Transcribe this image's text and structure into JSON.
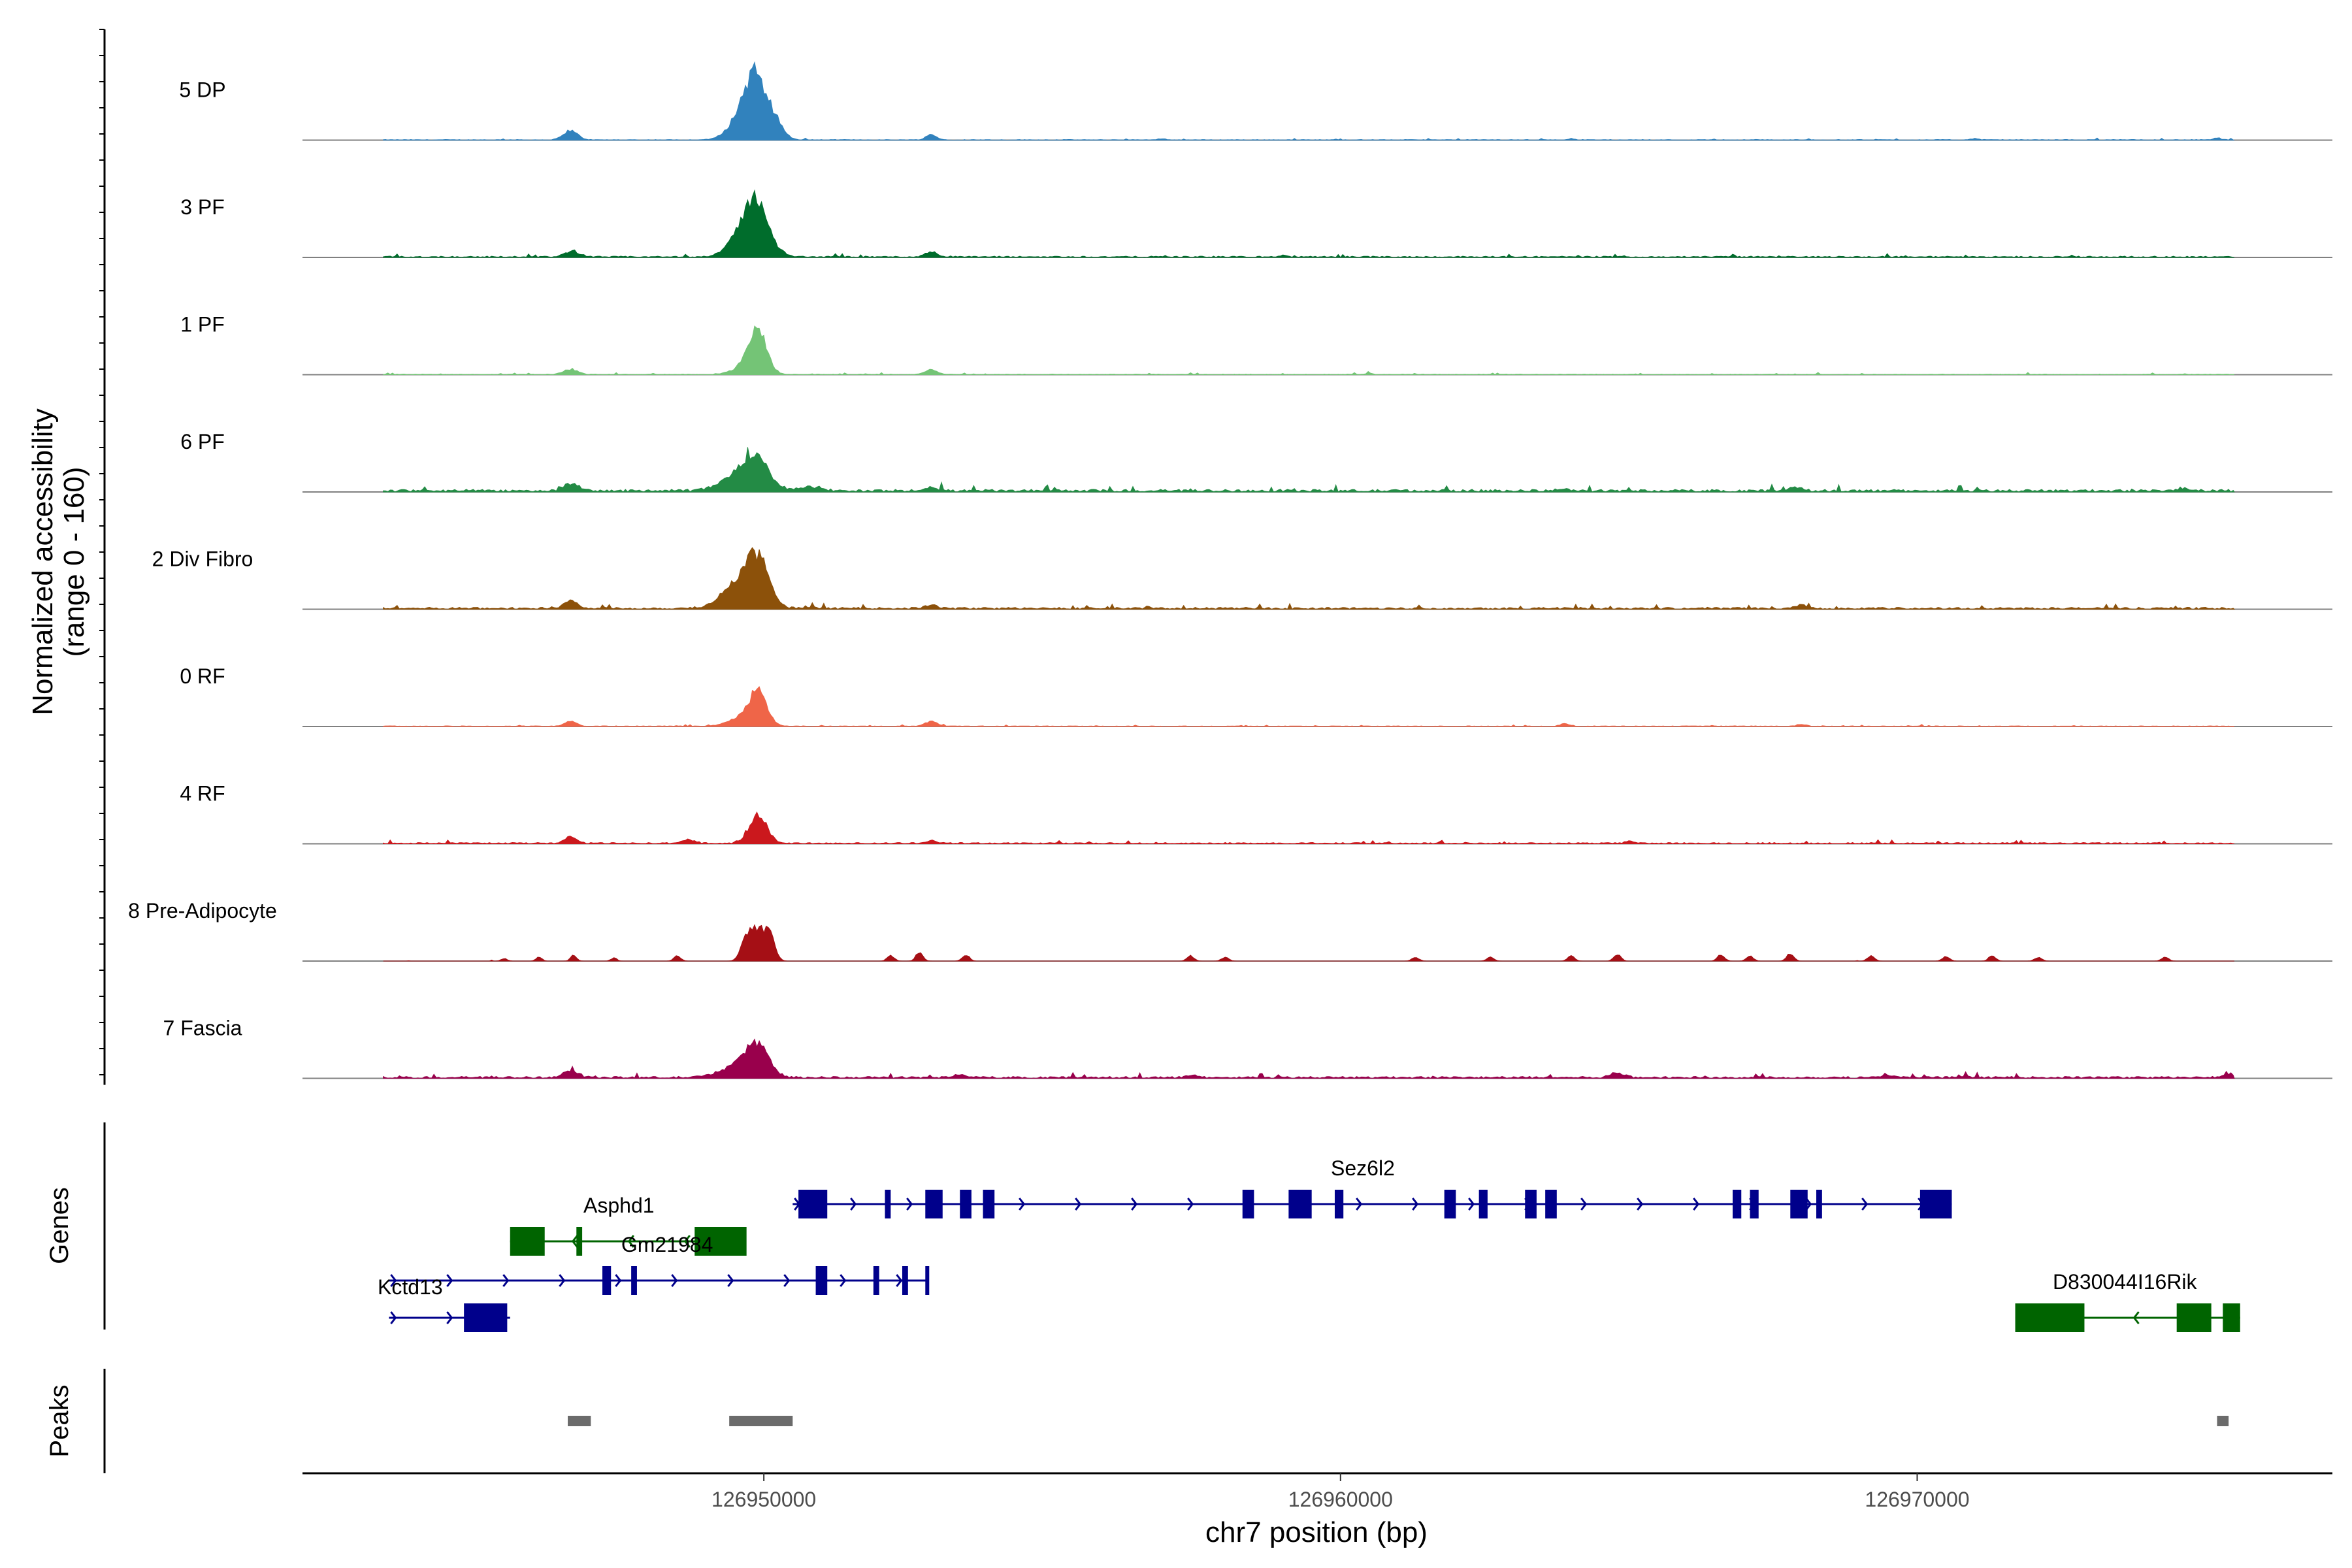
{
  "chart_data": {
    "type": "area",
    "region": "chr7",
    "xlabel": "chr7 position (bp)",
    "ylabel": [
      "Normalized accessibility",
      "(range 0 - 160)"
    ],
    "x_range": [
      126942000,
      126977200
    ],
    "y_range": [
      0,
      160
    ],
    "x_ticks": [
      126950000,
      126960000,
      126970000
    ],
    "x_tick_labels": [
      "126950000",
      "126960000",
      "126970000"
    ],
    "track_start": 126943400,
    "track_end": 126975500,
    "tracks": [
      {
        "name": "5 DP",
        "color": "#3182bd",
        "base": 1,
        "peaks": [
          [
            126946650,
            14,
            120
          ],
          [
            126949900,
            70,
            190
          ],
          [
            126949700,
            45,
            240
          ],
          [
            126950250,
            16,
            120
          ],
          [
            126952900,
            8,
            90
          ],
          [
            126956900,
            2,
            60
          ],
          [
            126964000,
            2,
            60
          ],
          [
            126971000,
            2,
            60
          ],
          [
            126975200,
            3,
            60
          ]
        ]
      },
      {
        "name": "3 PF",
        "color": "#006d2c",
        "base": 2,
        "peaks": [
          [
            126946650,
            8,
            120
          ],
          [
            126949900,
            60,
            200
          ],
          [
            126949700,
            40,
            250
          ],
          [
            126952900,
            8,
            100
          ],
          [
            126959000,
            2,
            60
          ]
        ]
      },
      {
        "name": "1 PF",
        "color": "#74c476",
        "base": 1,
        "peaks": [
          [
            126946650,
            8,
            120
          ],
          [
            126949900,
            60,
            150
          ],
          [
            126949700,
            12,
            220
          ],
          [
            126952900,
            7,
            100
          ],
          [
            126960500,
            2,
            60
          ]
        ]
      },
      {
        "name": "6 PF",
        "color": "#238b45",
        "base": 4,
        "peaks": [
          [
            126946650,
            12,
            120
          ],
          [
            126949900,
            40,
            200
          ],
          [
            126949600,
            28,
            300
          ],
          [
            126950800,
            6,
            200
          ],
          [
            126952900,
            5,
            100
          ],
          [
            126963800,
            3,
            100
          ],
          [
            126967900,
            6,
            100
          ],
          [
            126974600,
            4,
            100
          ]
        ]
      },
      {
        "name": "2 Div Fibro",
        "color": "#8c510a",
        "base": 3,
        "peaks": [
          [
            126946650,
            12,
            120
          ],
          [
            126949900,
            60,
            180
          ],
          [
            126949600,
            40,
            300
          ],
          [
            126952900,
            5,
            100
          ],
          [
            126968000,
            5,
            100
          ]
        ]
      },
      {
        "name": "0 RF",
        "color": "#ef6548",
        "base": 1,
        "peaks": [
          [
            126946650,
            8,
            100
          ],
          [
            126949900,
            50,
            150
          ],
          [
            126949600,
            12,
            220
          ],
          [
            126952900,
            8,
            100
          ],
          [
            126963900,
            4,
            80
          ],
          [
            126968000,
            3,
            80
          ]
        ]
      },
      {
        "name": "4 RF",
        "color": "#cb181d",
        "base": 2,
        "peaks": [
          [
            126946650,
            10,
            100
          ],
          [
            126948700,
            6,
            100
          ],
          [
            126949900,
            42,
            150
          ],
          [
            126952900,
            4,
            100
          ],
          [
            126965000,
            3,
            80
          ]
        ]
      },
      {
        "name": "8 Pre-Adipocyte",
        "color": "#a50f15",
        "base": 0,
        "peaks": [
          [
            126945500,
            4,
            50
          ],
          [
            126946100,
            6,
            50
          ],
          [
            126946700,
            10,
            50
          ],
          [
            126947400,
            5,
            50
          ],
          [
            126948500,
            8,
            60
          ],
          [
            126949700,
            40,
            90
          ],
          [
            126949900,
            45,
            90
          ],
          [
            126950100,
            42,
            90
          ],
          [
            126952200,
            8,
            60
          ],
          [
            126952700,
            14,
            60
          ],
          [
            126953500,
            10,
            60
          ],
          [
            126957400,
            8,
            60
          ],
          [
            126958000,
            6,
            60
          ],
          [
            126961300,
            6,
            60
          ],
          [
            126962600,
            6,
            60
          ],
          [
            126964000,
            8,
            60
          ],
          [
            126964800,
            10,
            60
          ],
          [
            126966600,
            10,
            60
          ],
          [
            126967100,
            8,
            60
          ],
          [
            126967800,
            12,
            60
          ],
          [
            126969200,
            8,
            60
          ],
          [
            126970500,
            7,
            60
          ],
          [
            126971300,
            8,
            60
          ],
          [
            126972100,
            6,
            60
          ],
          [
            126974300,
            6,
            60
          ]
        ]
      },
      {
        "name": "7 Fascia",
        "color": "#99004c",
        "base": 3,
        "peaks": [
          [
            126946650,
            12,
            120
          ],
          [
            126949900,
            40,
            180
          ],
          [
            126949600,
            22,
            300
          ],
          [
            126953400,
            5,
            100
          ],
          [
            126957400,
            3,
            100
          ],
          [
            126964800,
            7,
            120
          ],
          [
            126969500,
            4,
            100
          ],
          [
            126975400,
            6,
            100
          ]
        ]
      }
    ],
    "genes_panel_title": "Genes",
    "peaks_panel_title": "Peaks",
    "genes": [
      {
        "name": "Sez6l2",
        "strand": "+",
        "row": 0,
        "color": "#00008b",
        "start": 126950500,
        "end": 126970600,
        "exons": [
          [
            126950600,
            126951100
          ],
          [
            126952100,
            126952200
          ],
          [
            126952800,
            126953100
          ],
          [
            126953400,
            126953600
          ],
          [
            126953800,
            126954000
          ],
          [
            126958300,
            126958500
          ],
          [
            126959100,
            126959500
          ],
          [
            126959900,
            126960050
          ],
          [
            126961800,
            126962000
          ],
          [
            126962400,
            126962550
          ],
          [
            126963200,
            126963400
          ],
          [
            126963550,
            126963750
          ],
          [
            126966800,
            126966950
          ],
          [
            126967100,
            126967250
          ],
          [
            126967800,
            126968100
          ],
          [
            126968250,
            126968350
          ],
          [
            126970050,
            126970600
          ]
        ]
      },
      {
        "name": "Asphd1",
        "strand": "-",
        "row": 1,
        "color": "#006400",
        "start": 126945600,
        "end": 126949600,
        "exons": [
          [
            126945600,
            126946200
          ],
          [
            126946750,
            126946850
          ],
          [
            126948800,
            126949700
          ]
        ]
      },
      {
        "name": "Gm21984",
        "strand": "+",
        "row": 2,
        "color": "#00008b",
        "start": 126943500,
        "end": 126952850,
        "exons": [
          [
            126947200,
            126947350
          ],
          [
            126947700,
            126947800
          ],
          [
            126950900,
            126951100
          ],
          [
            126951900,
            126952000
          ],
          [
            126952400,
            126952500
          ],
          [
            126952800,
            126952850
          ]
        ]
      },
      {
        "name": "Kctd13",
        "strand": "+",
        "row": 3,
        "color": "#00008b",
        "start": 126943500,
        "end": 126945600,
        "exons": [
          [
            126944800,
            126945550
          ]
        ]
      },
      {
        "name": "D830044I16Rik",
        "strand": "-",
        "row": 3,
        "color": "#006400",
        "start": 126971700,
        "end": 126975600,
        "exons": [
          [
            126971700,
            126972900
          ],
          [
            126974500,
            126975100
          ],
          [
            126975300,
            126975600
          ]
        ]
      }
    ],
    "peaks": [
      [
        126946600,
        126947000
      ],
      [
        126949400,
        126950500
      ],
      [
        126975200,
        126975400
      ]
    ]
  }
}
